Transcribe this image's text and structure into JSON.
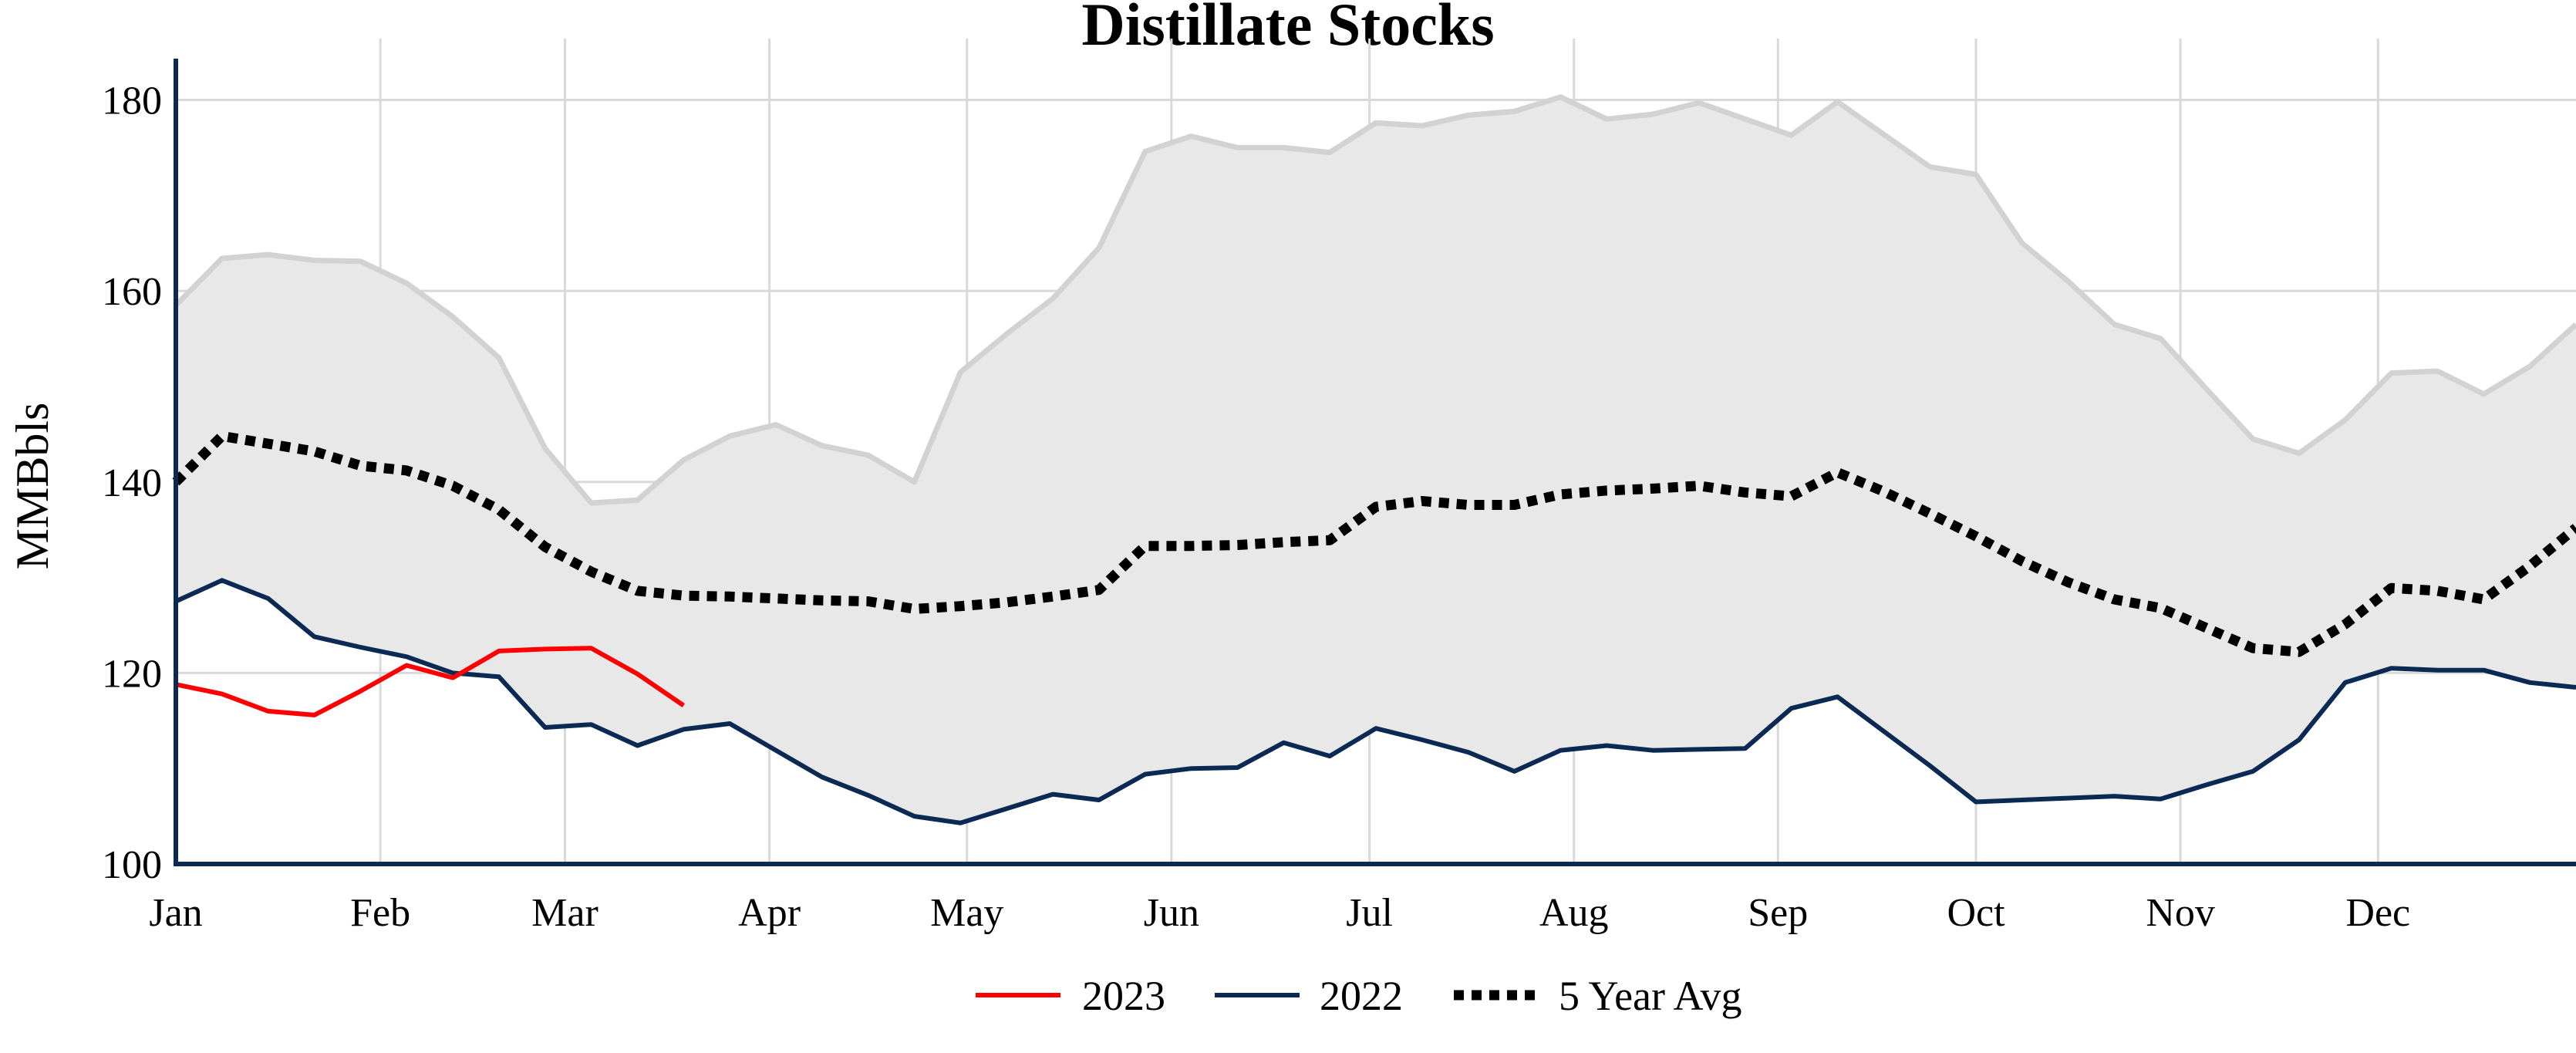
{
  "chart_data": {
    "type": "line",
    "title": "Distillate Stocks",
    "xlabel": "",
    "ylabel": "MMBbls",
    "ylim": [
      100,
      184
    ],
    "yticks": [
      100,
      120,
      140,
      160,
      180
    ],
    "xlim": [
      1,
      53
    ],
    "xticks": [
      {
        "label": "Jan",
        "week": 1
      },
      {
        "label": "Feb",
        "week": 5.43
      },
      {
        "label": "Mar",
        "week": 9.43
      },
      {
        "label": "Apr",
        "week": 13.86
      },
      {
        "label": "May",
        "week": 18.14
      },
      {
        "label": "Jun",
        "week": 22.57
      },
      {
        "label": "Jul",
        "week": 26.86
      },
      {
        "label": "Aug",
        "week": 31.29
      },
      {
        "label": "Sep",
        "week": 35.71
      },
      {
        "label": "Oct",
        "week": 40
      },
      {
        "label": "Nov",
        "week": 44.43
      },
      {
        "label": "Dec",
        "week": 48.71
      }
    ],
    "grid": true,
    "legend_position": "bottom",
    "colors": {
      "series_2023": "#ff0000",
      "series_2022": "#0a2a54",
      "avg": "#000000",
      "range_fill": "#e8e8e8",
      "range_line": "#d2d2d2",
      "axis": "#0a2a54",
      "grid": "#d9d9d9"
    },
    "range": {
      "x": [
        1,
        2,
        3,
        4,
        5,
        6,
        7,
        8,
        9,
        10,
        11,
        12,
        13,
        14,
        15,
        16,
        17,
        18,
        19,
        20,
        21,
        22,
        23,
        24,
        25,
        26,
        27,
        28,
        29,
        30,
        31,
        32,
        33,
        34,
        35,
        36,
        37,
        38,
        39,
        40,
        41,
        42,
        43,
        44,
        45,
        46,
        47,
        48,
        49,
        50,
        51,
        52,
        53
      ],
      "max": [
        158.5,
        163.4,
        163.8,
        163.2,
        163.1,
        160.8,
        157.3,
        153,
        143.5,
        137.8,
        138.1,
        142.3,
        144.8,
        146,
        143.8,
        142.8,
        140,
        151.5,
        155.5,
        159.2,
        164.5,
        174.6,
        176.2,
        175,
        175,
        174.5,
        177.6,
        177.3,
        178.4,
        178.8,
        180.3,
        178,
        178.5,
        179.7,
        178,
        176.3,
        179.8,
        176.4,
        173,
        172.2,
        165,
        161,
        156.5,
        155,
        149.7,
        144.5,
        143,
        146.5,
        151.4,
        151.6,
        149.2,
        152.1,
        156.5
      ],
      "min": [
        127.5,
        129.7,
        127.8,
        123.8,
        122.7,
        121.7,
        120,
        119.6,
        114.3,
        114.6,
        112.4,
        114.1,
        114.7,
        111.9,
        109.1,
        107.2,
        105,
        104.3,
        105.8,
        107.3,
        106.7,
        109.4,
        110,
        110.1,
        112.7,
        111.3,
        114.2,
        113,
        111.7,
        109.7,
        111.9,
        112.4,
        111.9,
        112,
        112.1,
        116.3,
        117.5,
        113.9,
        110.3,
        106.5,
        106.7,
        106.9,
        107.1,
        106.8,
        108.3,
        109.7,
        113,
        119,
        120.5,
        120.3,
        120.3,
        119,
        118.5
      ]
    },
    "series": [
      {
        "name": "2023",
        "x": [
          1,
          2,
          3,
          4,
          5,
          6,
          7,
          8,
          9,
          10,
          11,
          12
        ],
        "values": [
          118.8,
          117.8,
          116,
          115.6,
          118.1,
          120.8,
          119.5,
          122.3,
          122.5,
          122.6,
          119.9,
          116.6
        ]
      },
      {
        "name": "2022",
        "x": [
          1,
          2,
          3,
          4,
          5,
          6,
          7,
          8,
          9,
          10,
          11,
          12,
          13,
          14,
          15,
          16,
          17,
          18,
          19,
          20,
          21,
          22,
          23,
          24,
          25,
          26,
          27,
          28,
          29,
          30,
          31,
          32,
          33,
          34,
          35,
          36,
          37,
          38,
          39,
          40,
          41,
          42,
          43,
          44,
          45,
          46,
          47,
          48,
          49,
          50,
          51,
          52,
          53
        ],
        "values": [
          127.5,
          129.7,
          127.8,
          123.8,
          122.7,
          121.7,
          120,
          119.6,
          114.3,
          114.6,
          112.4,
          114.1,
          114.7,
          111.9,
          109.1,
          107.2,
          105,
          104.3,
          105.8,
          107.3,
          106.7,
          109.4,
          110,
          110.1,
          112.7,
          111.3,
          114.2,
          113,
          111.7,
          109.7,
          111.9,
          112.4,
          111.9,
          112,
          112.1,
          116.3,
          117.5,
          113.9,
          110.3,
          106.5,
          106.7,
          106.9,
          107.1,
          106.8,
          108.3,
          109.7,
          113,
          119,
          120.5,
          120.3,
          120.3,
          119,
          118.5
        ]
      },
      {
        "name": "5 Year Avg",
        "x": [
          1,
          2,
          3,
          4,
          5,
          6,
          7,
          8,
          9,
          10,
          11,
          12,
          13,
          14,
          15,
          16,
          17,
          18,
          19,
          20,
          21,
          22,
          23,
          24,
          25,
          26,
          27,
          28,
          29,
          30,
          31,
          32,
          33,
          34,
          35,
          36,
          37,
          38,
          39,
          40,
          41,
          42,
          43,
          44,
          45,
          46,
          47,
          48,
          49,
          50,
          51,
          52,
          53
        ],
        "values": [
          140,
          144.8,
          144,
          143.2,
          141.7,
          141.2,
          139.6,
          137.1,
          133.2,
          130.6,
          128.6,
          128.1,
          128,
          127.8,
          127.6,
          127.5,
          126.7,
          127,
          127.4,
          128,
          128.7,
          133.3,
          133.3,
          133.4,
          133.7,
          133.9,
          137.4,
          138,
          137.6,
          137.6,
          138.7,
          139.1,
          139.3,
          139.6,
          138.9,
          138.5,
          141,
          139,
          136.7,
          134.3,
          131.7,
          129.5,
          127.7,
          126.8,
          124.7,
          122.6,
          122.2,
          125.1,
          128.9,
          128.6,
          127.7,
          131.2,
          135.2
        ]
      }
    ]
  }
}
